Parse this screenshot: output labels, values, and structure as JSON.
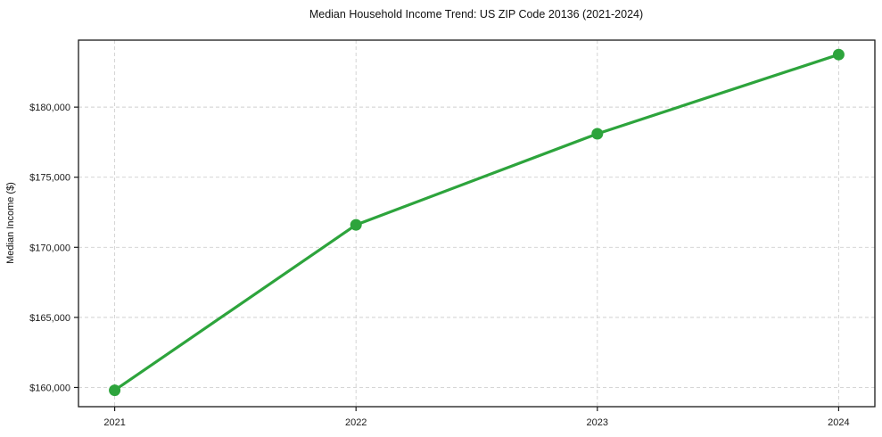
{
  "chart_data": {
    "type": "line",
    "title": "Median Household Income Trend: US ZIP Code 20136 (2021-2024)",
    "xlabel": "",
    "ylabel": "Median Income ($)",
    "x": [
      2021,
      2022,
      2023,
      2024
    ],
    "xtick_labels": [
      "2021",
      "2022",
      "2023",
      "2024"
    ],
    "series": [
      {
        "name": "Median Household Income",
        "values": [
          159800,
          171600,
          178100,
          183750
        ],
        "color": "#2da43c",
        "marker": "circle"
      }
    ],
    "yticks": [
      160000,
      165000,
      170000,
      175000,
      180000
    ],
    "ytick_labels": [
      "$160,000",
      "$165,000",
      "$170,000",
      "$175,000",
      "$180,000"
    ],
    "xlim": [
      2020.85,
      2024.15
    ],
    "ylim": [
      158630,
      184780
    ],
    "grid": true,
    "grid_style": "dashed",
    "grid_color": "#d0d0d0",
    "spine_color": "#1a1a1a",
    "legend": false
  }
}
